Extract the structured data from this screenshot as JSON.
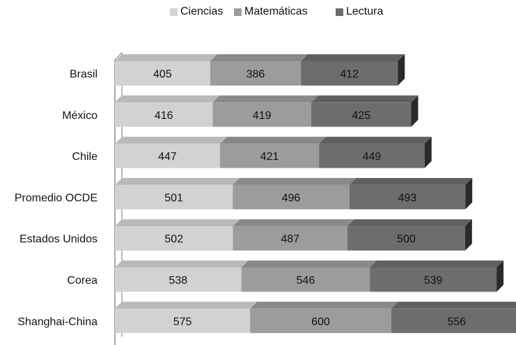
{
  "chart_data": {
    "type": "bar",
    "orientation": "horizontal",
    "stacked": true,
    "style": "3d",
    "categories": [
      "Brasil",
      "México",
      "Chile",
      "Promedio OCDE",
      "Estados Unidos",
      "Corea",
      "Shanghai-China"
    ],
    "series": [
      {
        "name": "Ciencias",
        "color": "#d2d2d2",
        "values": [
          405,
          416,
          447,
          501,
          502,
          538,
          575
        ]
      },
      {
        "name": "Matemáticas",
        "color": "#9c9c9c",
        "values": [
          386,
          419,
          421,
          496,
          487,
          546,
          600
        ]
      },
      {
        "name": "Lectura",
        "color": "#6d6d6d",
        "values": [
          412,
          425,
          449,
          493,
          500,
          539,
          556
        ]
      }
    ],
    "legend_position": "top",
    "grid": false
  }
}
